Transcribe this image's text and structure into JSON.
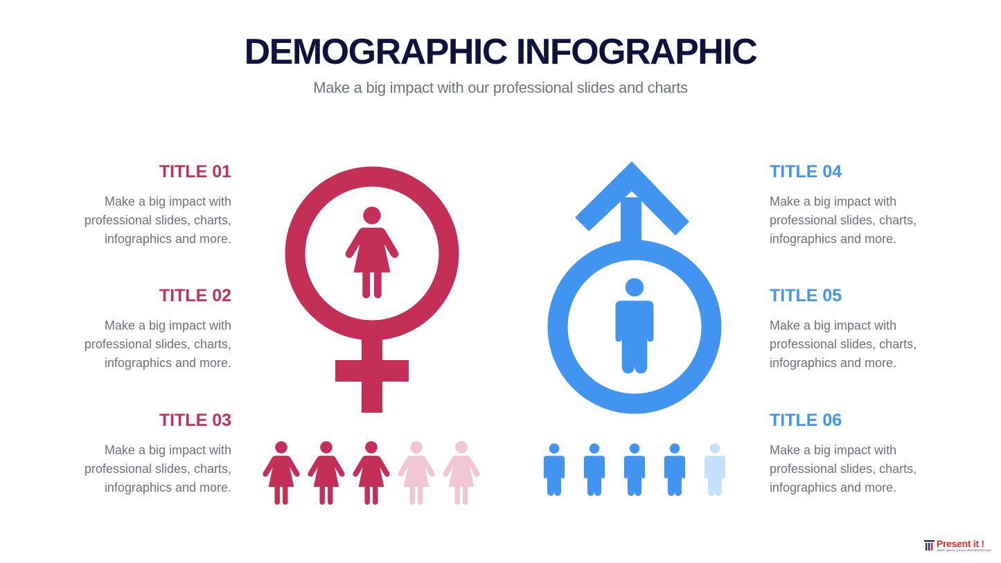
{
  "header": {
    "title": "DEMOGRAPHIC INFOGRAPHIC",
    "subtitle": "Make a big impact with our professional slides and charts"
  },
  "left_items": [
    {
      "title": "TITLE 01",
      "text": "Make a big impact with professional slides, charts, infographics and more."
    },
    {
      "title": "TITLE 02",
      "text": "Make a big impact with professional slides, charts, infographics and more."
    },
    {
      "title": "TITLE 03",
      "text": "Make a big impact with professional slides, charts, infographics and more."
    }
  ],
  "right_items": [
    {
      "title": "TITLE 04",
      "text": "Make a big impact with professional slides, charts, infographics and more."
    },
    {
      "title": "TITLE 05",
      "text": "Make a big impact with professional slides, charts, infographics and more."
    },
    {
      "title": "TITLE 06",
      "text": "Make a big impact with professional slides, charts, infographics and more."
    }
  ],
  "female": {
    "icon": "female-symbol-icon",
    "figures_total": 5,
    "figures_highlighted": 3,
    "color": "#c42f58",
    "muted_color": "#f0c6d3"
  },
  "male": {
    "icon": "male-symbol-icon",
    "figures_total": 5,
    "figures_highlighted": 4,
    "color": "#4195f1",
    "muted_color": "#c6e0fb"
  },
  "logo": {
    "name": "Present it !",
    "tagline": "MAKE QUICK & EASY PRESENTATIONS",
    "colors": {
      "brand": "#e12a2a",
      "dark": "#2d2d55"
    }
  }
}
